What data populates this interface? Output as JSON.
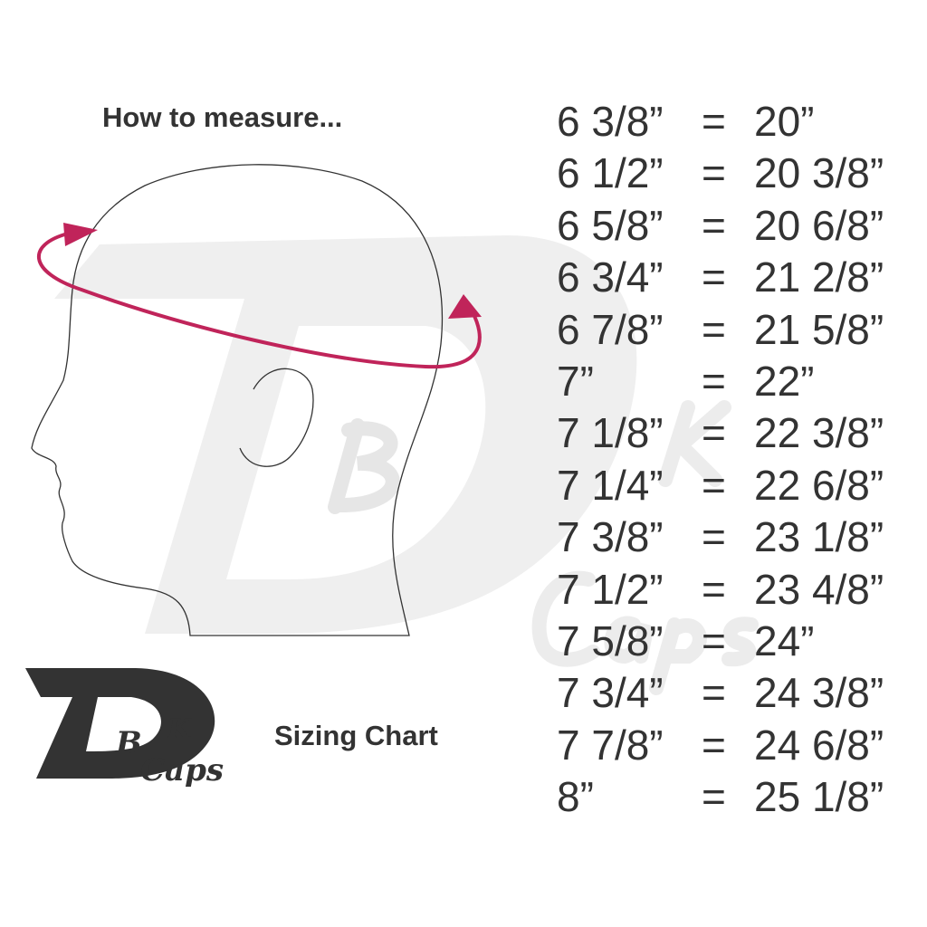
{
  "heading": "How to measure...",
  "caption": "Sizing Chart",
  "logo": {
    "text": "DBK Caps",
    "color": "#333333"
  },
  "colors": {
    "arrow": "#c0245a",
    "text": "#333333",
    "watermark": "#efefef"
  },
  "sizes": [
    {
      "hat": "6 3/8”",
      "eq": "=",
      "inches": "20”"
    },
    {
      "hat": "6 1/2”",
      "eq": "=",
      "inches": "20 3/8”"
    },
    {
      "hat": "6 5/8”",
      "eq": "=",
      "inches": "20 6/8”"
    },
    {
      "hat": "6 3/4”",
      "eq": "=",
      "inches": "21 2/8”"
    },
    {
      "hat": "6 7/8”",
      "eq": "=",
      "inches": "21 5/8”"
    },
    {
      "hat": "7”",
      "eq": "=",
      "inches": "22”"
    },
    {
      "hat": "7 1/8”",
      "eq": "=",
      "inches": "22 3/8”"
    },
    {
      "hat": "7 1/4”",
      "eq": "=",
      "inches": "22 6/8”"
    },
    {
      "hat": "7 3/8”",
      "eq": "=",
      "inches": "23 1/8”"
    },
    {
      "hat": "7 1/2”",
      "eq": "=",
      "inches": "23 4/8”"
    },
    {
      "hat": "7 5/8”",
      "eq": "=",
      "inches": "24”"
    },
    {
      "hat": "7 3/4”",
      "eq": "=",
      "inches": "24 3/8”"
    },
    {
      "hat": "7 7/8”",
      "eq": "=",
      "inches": "24 6/8”"
    },
    {
      "hat": "8”",
      "eq": "=",
      "inches": "25 1/8”"
    }
  ]
}
